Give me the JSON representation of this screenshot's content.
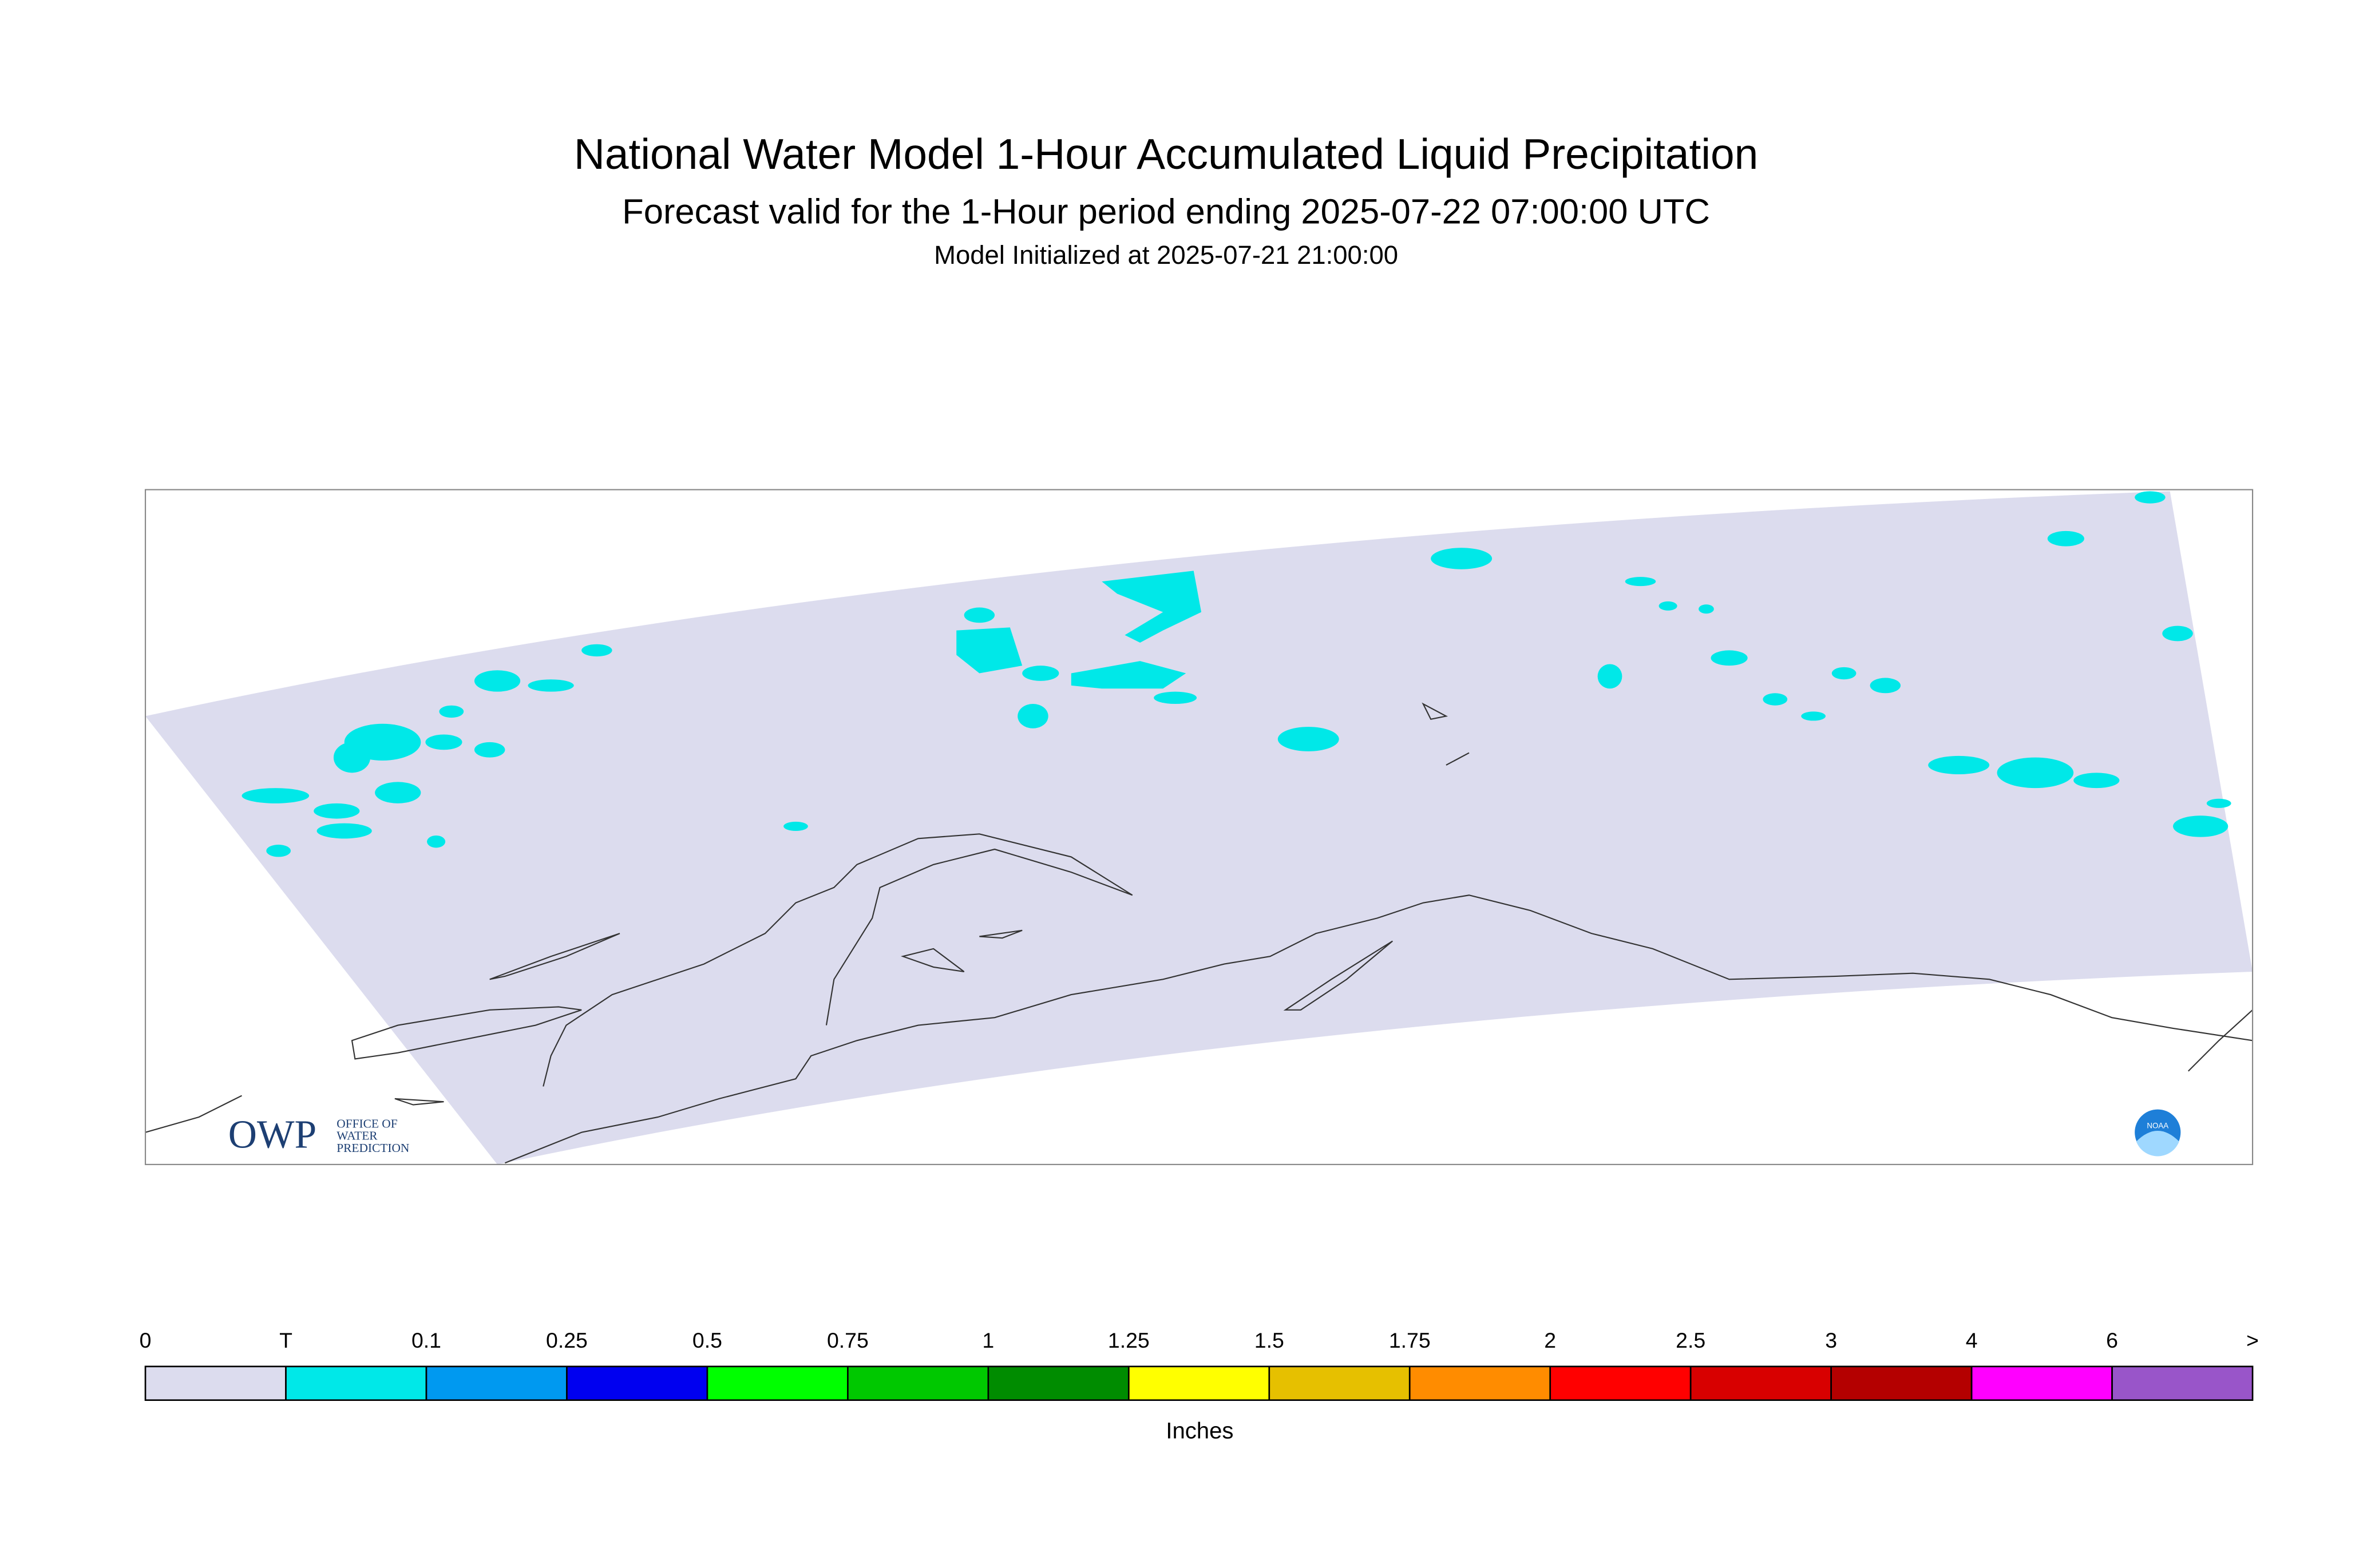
{
  "header": {
    "title": "National Water Model 1-Hour Accumulated Liquid Precipitation",
    "subtitle": "Forecast valid for the 1-Hour period ending 2025-07-22 07:00:00 UTC",
    "initialized": "Model Initialized at 2025-07-21 21:00:00"
  },
  "map": {
    "swath_color": "#dcdcee",
    "precip_color": "#00e8e8"
  },
  "colorbar": {
    "labels": [
      "0",
      "T",
      "0.1",
      "0.25",
      "0.5",
      "0.75",
      "1",
      "1.25",
      "1.5",
      "1.75",
      "2",
      "2.5",
      "3",
      "4",
      "6",
      ">"
    ],
    "colors": [
      "#dcdcee",
      "#00e8e8",
      "#0099f0",
      "#0000f0",
      "#00ff00",
      "#00c800",
      "#008c00",
      "#ffff00",
      "#e6c000",
      "#ff8c00",
      "#ff0000",
      "#d80000",
      "#b40000",
      "#ff00ff",
      "#9955c9"
    ],
    "unit": "Inches"
  },
  "logos": {
    "owp": "OWP",
    "owp_line1": "OFFICE OF",
    "owp_line2": "WATER",
    "owp_line3": "PREDICTION",
    "noaa": "NOAA"
  }
}
